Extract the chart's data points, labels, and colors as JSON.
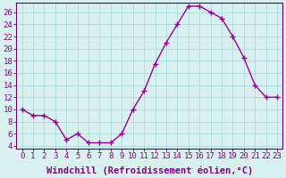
{
  "x": [
    0,
    1,
    2,
    3,
    4,
    5,
    6,
    7,
    8,
    9,
    10,
    11,
    12,
    13,
    14,
    15,
    16,
    17,
    18,
    19,
    20,
    21,
    22,
    23
  ],
  "y": [
    10,
    9,
    9,
    8,
    5,
    6,
    4.5,
    4.5,
    4.5,
    6,
    10,
    13,
    17.5,
    21,
    24,
    27,
    27,
    26,
    25,
    22,
    18.5,
    14,
    12,
    12
  ],
  "line_color": "#990099",
  "marker": "+",
  "marker_size": 4,
  "marker_lw": 1.0,
  "line_width": 1.0,
  "bg_color": "#d8f0f0",
  "grid_color": "#b0dede",
  "ylim": [
    3.5,
    27.5
  ],
  "yticks": [
    4,
    6,
    8,
    10,
    12,
    14,
    16,
    18,
    20,
    22,
    24,
    26
  ],
  "xticks": [
    0,
    1,
    2,
    3,
    4,
    5,
    6,
    7,
    8,
    9,
    10,
    11,
    12,
    13,
    14,
    15,
    16,
    17,
    18,
    19,
    20,
    21,
    22,
    23
  ],
  "xlabel": "Windchill (Refroidissement éolien,°C)",
  "xlabel_fontsize": 7.5,
  "tick_fontsize": 6.5,
  "tick_color": "#880088",
  "axis_color": "#660066",
  "spine_lw": 0.8
}
